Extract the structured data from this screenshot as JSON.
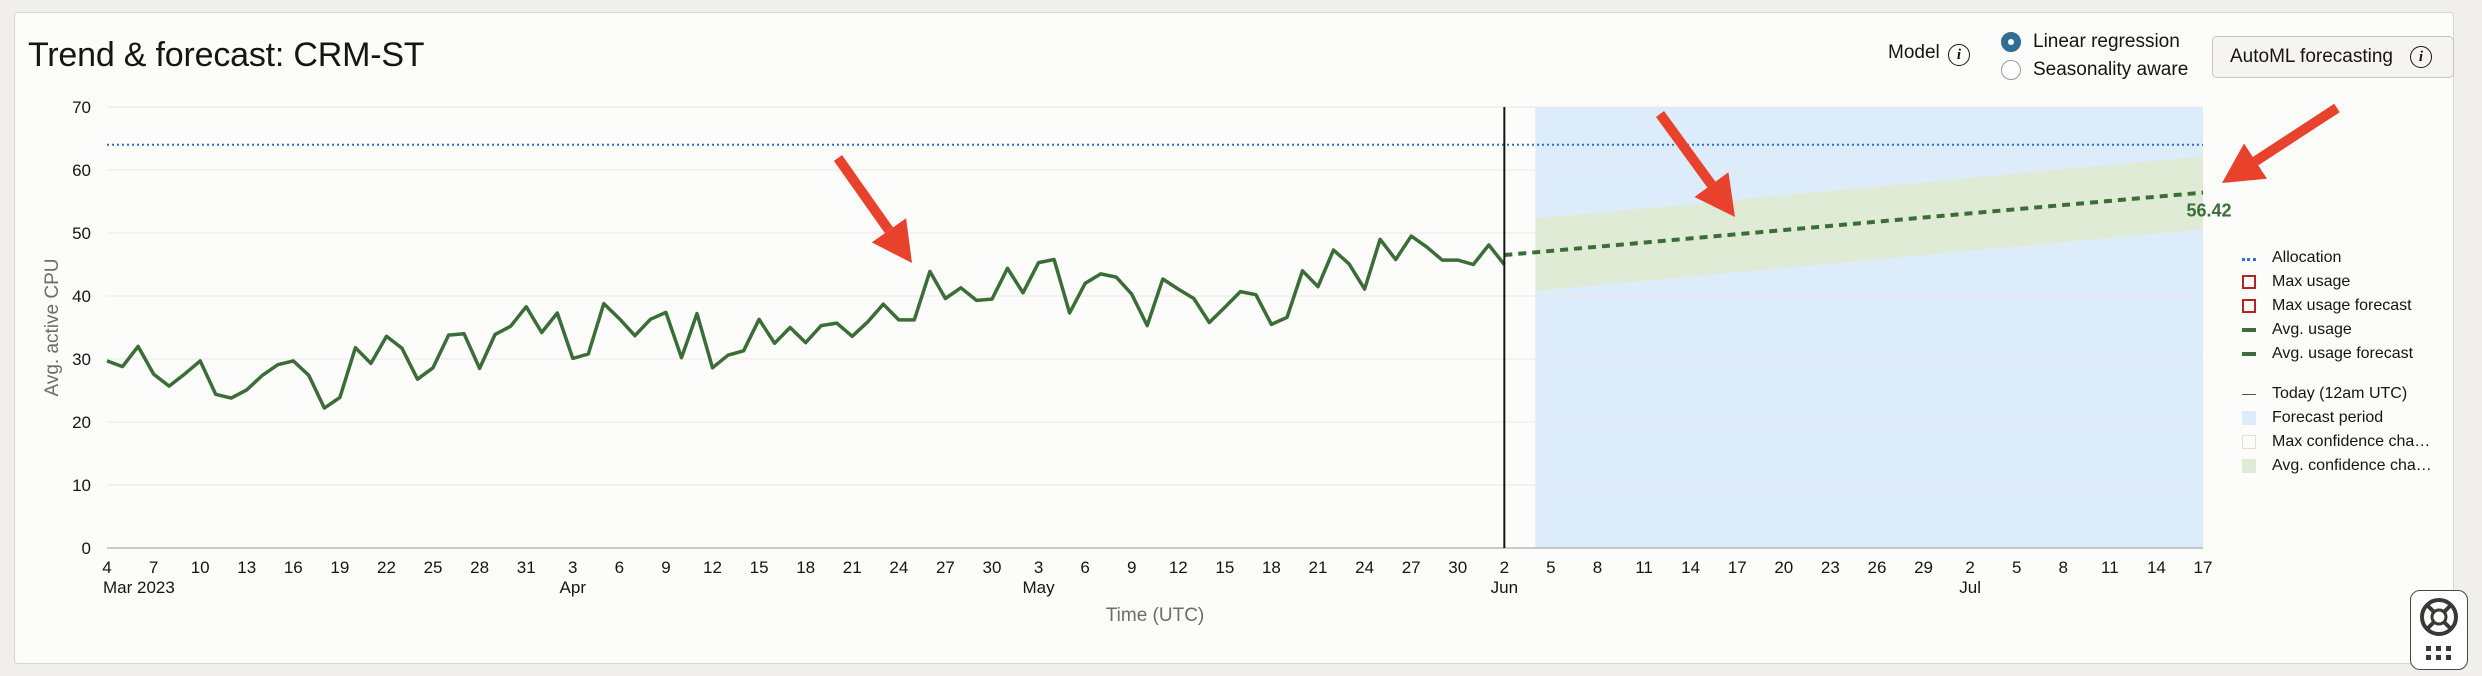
{
  "header": {
    "title": "Trend & forecast: CRM-ST",
    "model_label": "Model",
    "model_options": [
      {
        "label": "Linear regression",
        "selected": true
      },
      {
        "label": "Seasonality aware",
        "selected": false
      }
    ],
    "automl_label": "AutoML forecasting"
  },
  "legend": {
    "items": [
      {
        "label": "Allocation",
        "symbol": "dotted-line",
        "color": "#2f6fdb"
      },
      {
        "label": "Max usage",
        "symbol": "square-outline",
        "color": "#b32424"
      },
      {
        "label": "Max usage forecast",
        "symbol": "square-outline",
        "color": "#b32424"
      },
      {
        "label": "Avg. usage",
        "symbol": "solid-line",
        "color": "#3b6e36"
      },
      {
        "label": "Avg. usage forecast",
        "symbol": "dashed-line",
        "color": "#3b6e36"
      }
    ],
    "items2": [
      {
        "label": "Today (12am UTC)",
        "symbol": "thin-line",
        "color": "#555555"
      },
      {
        "label": "Forecast period",
        "symbol": "filled-square",
        "color": "#dcecfb"
      },
      {
        "label": "Max confidence cha…",
        "symbol": "outline-square",
        "color": "#e2dfdb"
      },
      {
        "label": "Avg. confidence cha…",
        "symbol": "filled-square",
        "color": "#dfebd4"
      }
    ]
  },
  "chart_data": {
    "type": "line",
    "title": "Trend & forecast: CRM-ST",
    "xlabel": "Time (UTC)",
    "ylabel": "Avg. active CPU",
    "ylim": [
      0,
      70
    ],
    "yticks": [
      0,
      10,
      20,
      30,
      40,
      50,
      60,
      70
    ],
    "xrange": [
      "2023-03-04",
      "2023-07-17"
    ],
    "x_tick_labels": [
      "4",
      "7",
      "10",
      "13",
      "16",
      "19",
      "22",
      "25",
      "28",
      "31",
      "3",
      "6",
      "9",
      "12",
      "15",
      "18",
      "21",
      "24",
      "27",
      "30",
      "3",
      "6",
      "9",
      "12",
      "15",
      "18",
      "21",
      "24",
      "27",
      "30",
      "2",
      "5",
      "8",
      "11",
      "14",
      "17",
      "20",
      "23",
      "26",
      "29",
      "2",
      "5",
      "8",
      "11",
      "14",
      "17"
    ],
    "month_labels": [
      {
        "date": "2023-03-04",
        "label": "Mar 2023"
      },
      {
        "date": "2023-04-03",
        "label": "Apr"
      },
      {
        "date": "2023-05-03",
        "label": "May"
      },
      {
        "date": "2023-06-02",
        "label": "Jun"
      },
      {
        "date": "2023-07-02",
        "label": "Jul"
      }
    ],
    "grid": true,
    "legend_position": "right",
    "allocation": 64,
    "today": "2023-06-02",
    "forecast_period": [
      "2023-06-04",
      "2023-07-17"
    ],
    "avg_usage": {
      "name": "Avg. usage",
      "start": "2023-03-04",
      "values": [
        29.7,
        28.8,
        32.0,
        27.6,
        25.7,
        27.6,
        29.7,
        24.4,
        23.8,
        25.1,
        27.4,
        29.1,
        29.7,
        27.4,
        22.2,
        23.9,
        31.8,
        29.3,
        33.6,
        31.7,
        26.8,
        28.6,
        33.8,
        34.0,
        28.5,
        33.9,
        35.2,
        38.3,
        34.2,
        37.3,
        30.1,
        30.8,
        38.8,
        36.4,
        33.7,
        36.3,
        37.4,
        30.2,
        37.2,
        28.6,
        30.6,
        31.3,
        36.3,
        32.5,
        35.0,
        32.6,
        35.3,
        35.7,
        33.6,
        35.9,
        38.7,
        36.2,
        36.2,
        43.9,
        39.6,
        41.3,
        39.3,
        39.5,
        44.4,
        40.5,
        45.3,
        45.8,
        37.3,
        42.0,
        43.5,
        43.0,
        40.3,
        35.3,
        42.7,
        41.1,
        39.6,
        35.8,
        38.2,
        40.7,
        40.2,
        35.5,
        36.6,
        44.0,
        41.5,
        47.3,
        45.1,
        41.1,
        49.0,
        45.8,
        49.5,
        47.8,
        45.7,
        45.7,
        45.0,
        48.1,
        45.0
      ]
    },
    "avg_usage_forecast": {
      "name": "Avg. usage forecast",
      "start": "2023-06-02",
      "end": "2023-07-17",
      "start_value": 46.5,
      "end_value": 56.42
    },
    "avg_confidence_band": {
      "name": "Avg. confidence cha…",
      "start": "2023-06-04",
      "end": "2023-07-17",
      "lower": [
        40.8,
        50.6
      ],
      "upper": [
        52.3,
        62.2
      ]
    },
    "annotations": [
      {
        "type": "data-label",
        "x": "2023-07-17",
        "y": 56.42,
        "text": "56.42"
      }
    ]
  }
}
